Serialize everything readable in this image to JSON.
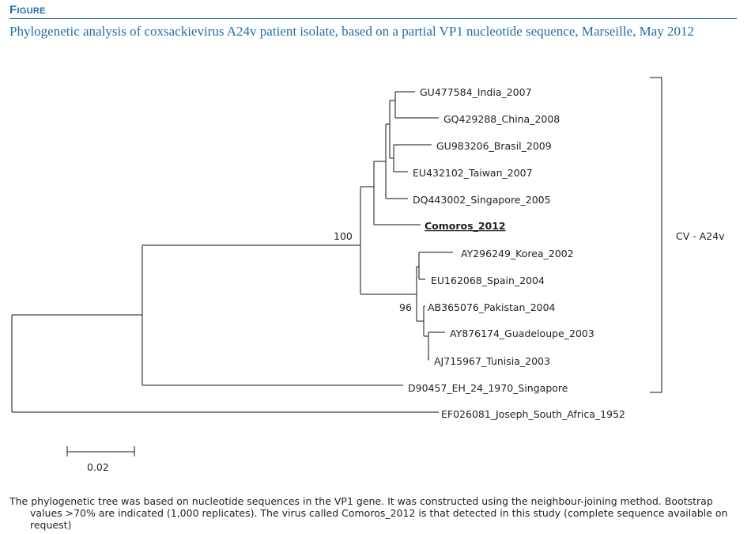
{
  "figure_label": "Figure",
  "title": "Phylogenetic analysis of coxsackievirus A24v patient isolate, based on a partial VP1 nucleotide sequence, Marseille, May 2012",
  "tree": {
    "taxa": [
      "GU477584_India_2007",
      "GQ429288_China_2008",
      "GU983206_Brasil_2009",
      "EU432102_Taiwan_2007",
      "DQ443002_Singapore_2005",
      "Comoros_2012",
      "AY296249_Korea_2002",
      "EU162068_Spain_2004",
      "AB365076_Pakistan_2004",
      "AY876174_Guadeloupe_2003",
      "AJ715967_Tunisia_2003",
      "D90457_EH_24_1970_Singapore",
      "EF026081_Joseph_South_Africa_1952"
    ],
    "highlighted_taxon": "Comoros_2012",
    "bootstrap_values": [
      "100",
      "96"
    ],
    "clade_label": "CV - A24v",
    "scale_bar_label": "0.02"
  },
  "caption": "The phylogenetic tree was based on nucleotide sequences in the VP1 gene. It was constructed using the neighbour-joining method. Bootstrap values >70% are indicated (1,000 replicates). The virus called Comoros_2012 is that detected in this study (complete sequence available on request)"
}
